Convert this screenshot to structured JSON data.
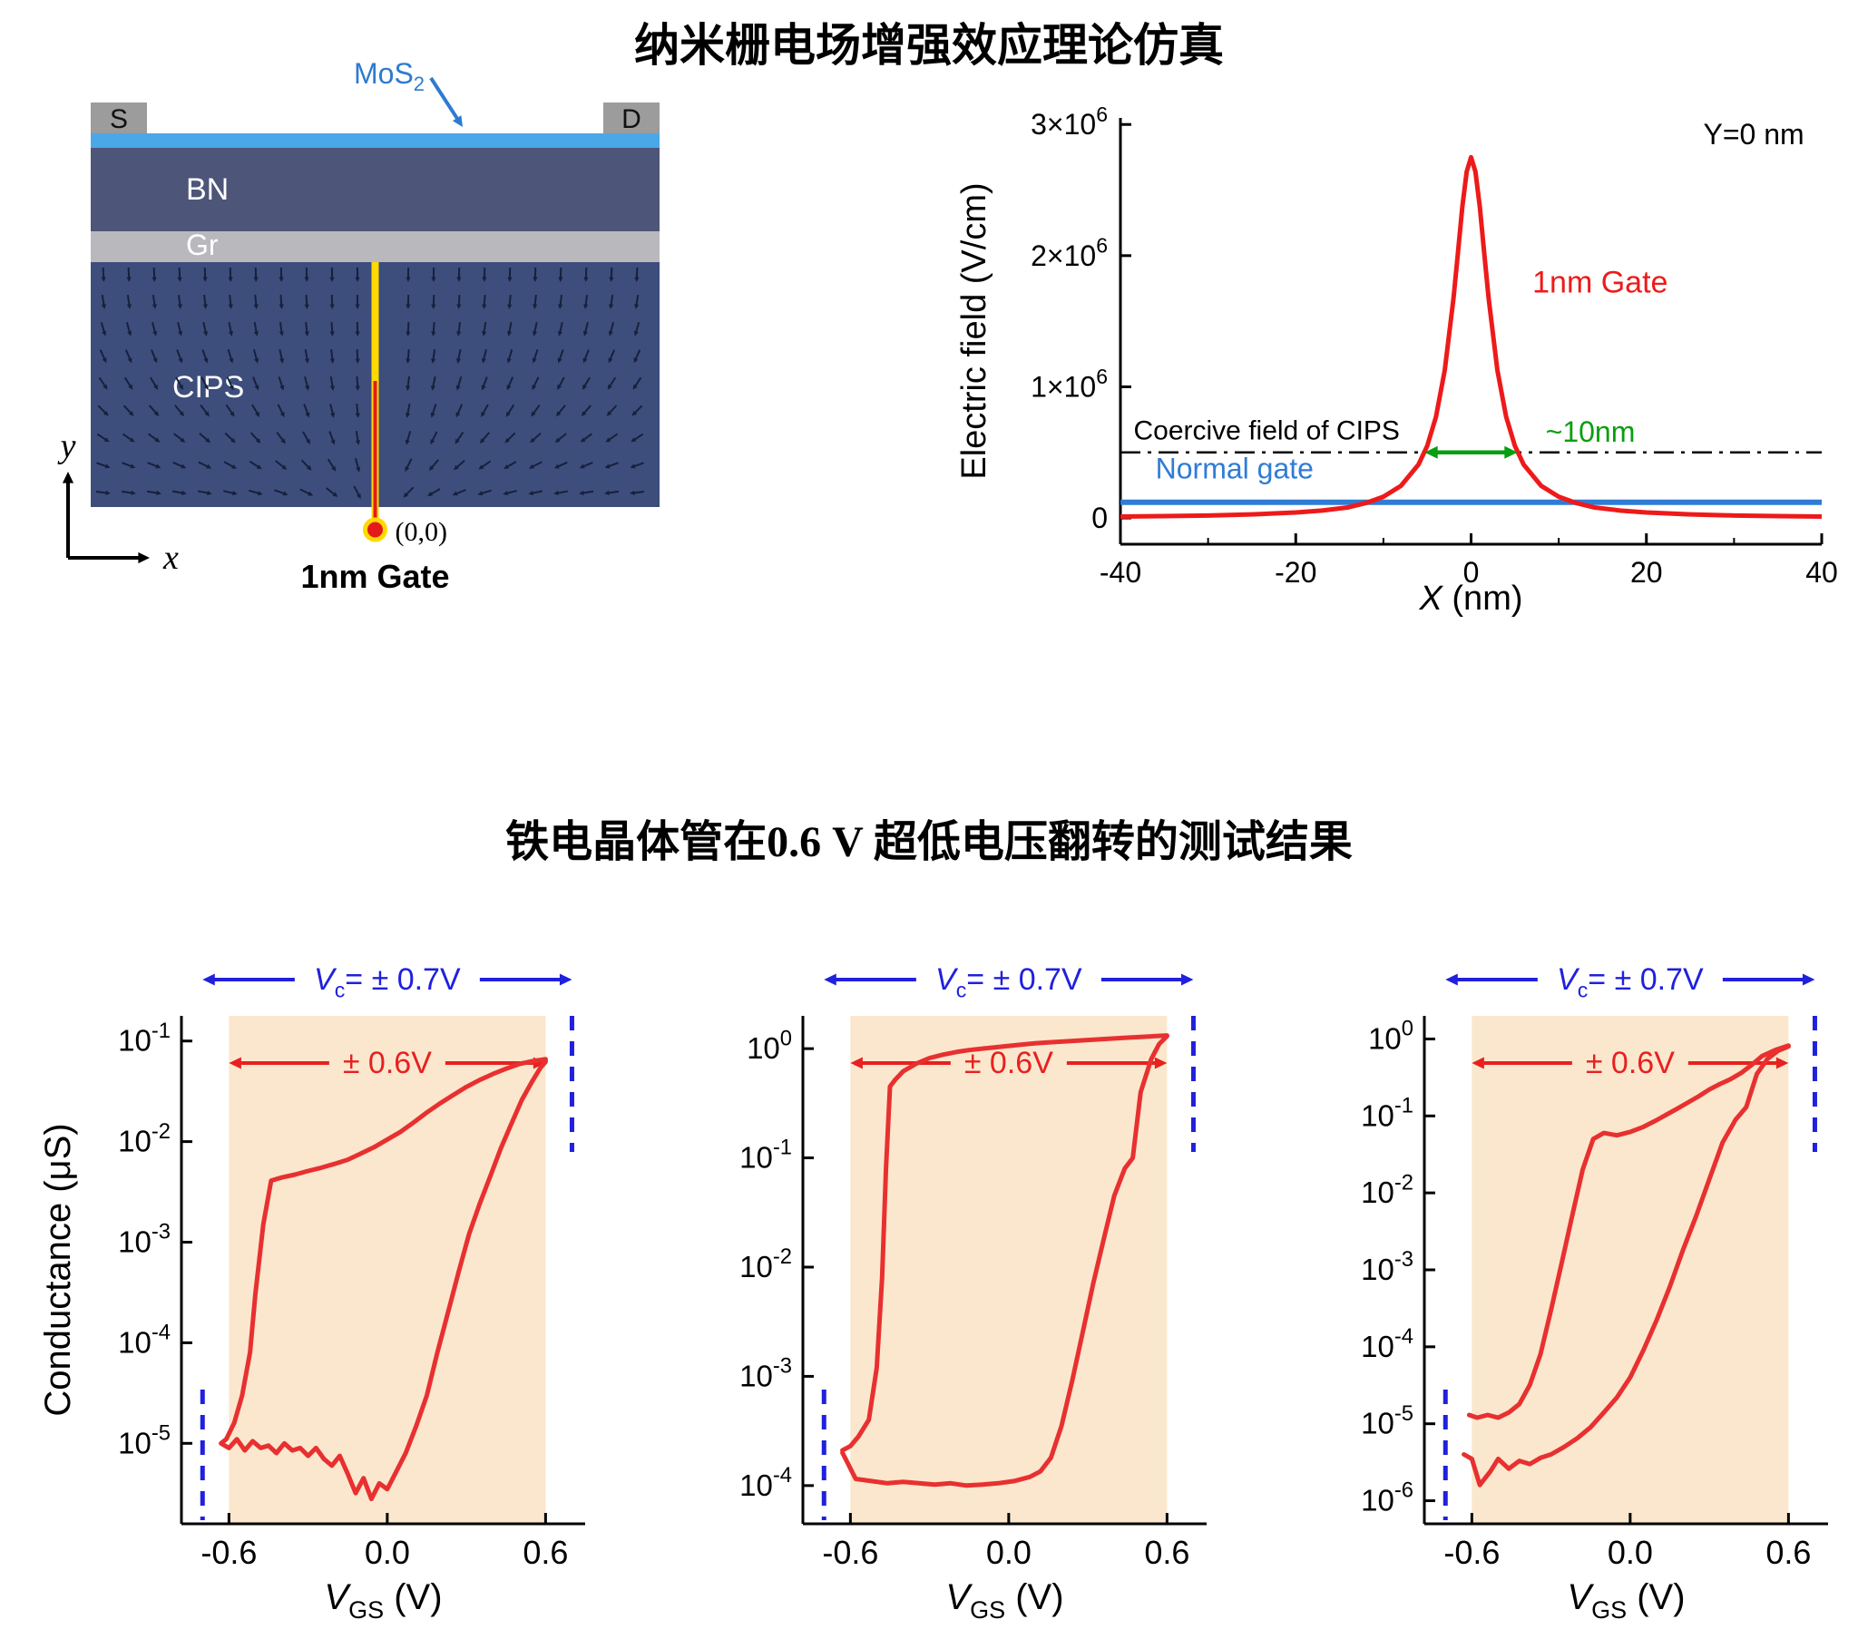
{
  "page": {
    "title_top": "纳米栅电场增强效应理论仿真",
    "title_bottom": "铁电晶体管在0.6 V 超低电压翻转的测试结果"
  },
  "schematic": {
    "source": "S",
    "drain": "D",
    "mos2_main": "MoS",
    "mos2_sub": "2",
    "bn": "BN",
    "gr": "Gr",
    "cips": "CIPS",
    "gate_label": "1nm Gate",
    "origin_label": "(0,0)",
    "axis_x": "x",
    "axis_y": "y",
    "colors": {
      "mos2": "#4aa8e8",
      "bn": "#4d5578",
      "gr": "#b9b9bd",
      "cips": "#3d4e7c",
      "contact": "#9c9c9c",
      "gate_yellow": "#ffd900",
      "gate_red": "#e41a1a",
      "field_arrow": "#17203c",
      "label_blue": "#2e7bd0"
    }
  },
  "style": {
    "curve_red": "#e83030",
    "band": "#fbe7cd",
    "blue": "#2020dd",
    "red": "#e82020",
    "green": "#089e10",
    "field_red": "#ee1a1a",
    "field_blue": "#2f7cd6"
  },
  "chart_data": [
    {
      "id": "field",
      "type": "line",
      "xlabel_italic": "X",
      "xlabel_rest": " (nm)",
      "ylabel": "Electric field (V/cm)",
      "xlim": [
        -40,
        40
      ],
      "ylim_e6": [
        -0.2,
        3.05
      ],
      "xticks": [
        -40,
        -20,
        0,
        20,
        40
      ],
      "xtick_labels": [
        "-40",
        "-20",
        "0",
        "20",
        "40"
      ],
      "xticks_minor": [
        -30,
        -10,
        10,
        30
      ],
      "yticks": [
        {
          "v": 0,
          "label": "0"
        },
        {
          "v": 1,
          "label": "1×10^6"
        },
        {
          "v": 2,
          "label": "2×10^6"
        },
        {
          "v": 3,
          "label": "3×10^6"
        }
      ],
      "coercive_e6": 0.5,
      "width_arrow": {
        "x1": -5.3,
        "x2": 5.3,
        "y_e6": 0.5,
        "label": "~10nm",
        "label_x": 8.5,
        "label_y_e6": 0.58
      },
      "annotations": {
        "y0_label": "Y=0 nm",
        "y0_x": 38,
        "y0_y_e6": 2.85,
        "gate_label": "1nm Gate",
        "gate_x": 7,
        "gate_y_e6": 1.72,
        "coercive_label": "Coercive field of CIPS",
        "coercive_x": -38.5,
        "coercive_y_e6": 0.6,
        "normal_label": "Normal gate",
        "normal_x": -36,
        "normal_y_e6": 0.3
      },
      "series": [
        {
          "name": "1nm Gate",
          "x": [
            -40,
            -35,
            -30,
            -25,
            -20,
            -17,
            -14,
            -12,
            -10,
            -8,
            -6,
            -5,
            -4,
            -3,
            -2,
            -1.5,
            -1,
            -0.5,
            0,
            0.5,
            1,
            1.5,
            2,
            3,
            4,
            5,
            6,
            8,
            10,
            12,
            14,
            17,
            20,
            25,
            30,
            35,
            40
          ],
          "y_e6": [
            0.011,
            0.014,
            0.019,
            0.027,
            0.042,
            0.057,
            0.081,
            0.114,
            0.162,
            0.245,
            0.407,
            0.55,
            0.772,
            1.127,
            1.677,
            2.02,
            2.37,
            2.64,
            2.75,
            2.64,
            2.37,
            2.02,
            1.677,
            1.127,
            0.772,
            0.55,
            0.407,
            0.245,
            0.162,
            0.114,
            0.081,
            0.057,
            0.042,
            0.027,
            0.019,
            0.014,
            0.011
          ]
        },
        {
          "name": "Normal gate",
          "x": [
            -40,
            40
          ],
          "y_e6": [
            0.12,
            0.12
          ]
        }
      ]
    },
    {
      "id": "transfer-a",
      "type": "line",
      "xlabel": {
        "main": "V",
        "sub": "GS",
        "rest": " (V)"
      },
      "ylabel": "Conductance (μS)",
      "xlim": [
        -0.78,
        0.75
      ],
      "xticks": {
        "values": [
          -0.6,
          0.0,
          0.6
        ],
        "labels": [
          "-0.6",
          "0.0",
          "0.6"
        ]
      },
      "ylog": [
        -5.8,
        -0.75
      ],
      "yticks": [
        {
          "exp": -1,
          "label": "10^-1"
        },
        {
          "exp": -2,
          "label": "10^-2"
        },
        {
          "exp": -3,
          "label": "10^-3"
        },
        {
          "exp": -4,
          "label": "10^-4"
        },
        {
          "exp": -5,
          "label": "10^-5"
        }
      ],
      "band": [
        -0.6,
        0.6
      ],
      "vc": {
        "main": "V",
        "sub": "c",
        "rest": "= ± 0.7V",
        "x1": -0.7,
        "x2": 0.7
      },
      "sweep": {
        "label": "± 0.6V",
        "x1": -0.6,
        "x2": 0.6
      },
      "curve": {
        "x": [
          -0.63,
          -0.6,
          -0.57,
          -0.54,
          -0.51,
          -0.48,
          -0.45,
          -0.42,
          -0.39,
          -0.36,
          -0.33,
          -0.3,
          -0.27,
          -0.24,
          -0.21,
          -0.18,
          -0.15,
          -0.12,
          -0.09,
          -0.06,
          -0.03,
          0.0,
          0.03,
          0.07,
          0.11,
          0.15,
          0.19,
          0.23,
          0.27,
          0.31,
          0.35,
          0.39,
          0.43,
          0.47,
          0.51,
          0.55,
          0.58,
          0.6,
          0.6,
          0.55,
          0.5,
          0.45,
          0.4,
          0.35,
          0.3,
          0.25,
          0.2,
          0.15,
          0.1,
          0.05,
          0.0,
          -0.05,
          -0.1,
          -0.15,
          -0.2,
          -0.25,
          -0.3,
          -0.35,
          -0.4,
          -0.44,
          -0.47,
          -0.5,
          -0.52,
          -0.55,
          -0.58,
          -0.61,
          -0.63
        ],
        "y": [
          1e-05,
          9e-06,
          1.1e-05,
          8.5e-06,
          1.05e-05,
          9e-06,
          9.5e-06,
          8e-06,
          1e-05,
          8.5e-06,
          9e-06,
          7.5e-06,
          9e-06,
          7e-06,
          6e-06,
          7.5e-06,
          5e-06,
          3.2e-06,
          4.5e-06,
          2.8e-06,
          4e-06,
          3.5e-06,
          5e-06,
          8e-06,
          1.5e-05,
          3e-05,
          8e-05,
          0.0002,
          0.0005,
          0.0012,
          0.0024,
          0.0045,
          0.0085,
          0.015,
          0.026,
          0.04,
          0.054,
          0.062,
          0.066,
          0.063,
          0.059,
          0.053,
          0.047,
          0.041,
          0.035,
          0.029,
          0.024,
          0.0195,
          0.0155,
          0.0125,
          0.0105,
          0.0088,
          0.0076,
          0.0066,
          0.006,
          0.0055,
          0.0051,
          0.0047,
          0.0044,
          0.0041,
          0.0015,
          0.0003,
          8e-05,
          3e-05,
          1.6e-05,
          1.1e-05,
          1e-05
        ]
      }
    },
    {
      "id": "transfer-b",
      "type": "line",
      "xlabel": {
        "main": "V",
        "sub": "GS",
        "rest": " (V)"
      },
      "ylabel": "",
      "xlim": [
        -0.78,
        0.75
      ],
      "xticks": {
        "values": [
          -0.6,
          0.0,
          0.6
        ],
        "labels": [
          "-0.6",
          "0.0",
          "0.6"
        ]
      },
      "ylog": [
        -4.35,
        0.3
      ],
      "yticks": [
        {
          "exp": 0,
          "label": "10^0"
        },
        {
          "exp": -1,
          "label": "10^-1"
        },
        {
          "exp": -2,
          "label": "10^-2"
        },
        {
          "exp": -3,
          "label": "10^-3"
        },
        {
          "exp": -4,
          "label": "10^-4"
        }
      ],
      "band": [
        -0.6,
        0.6
      ],
      "vc": {
        "main": "V",
        "sub": "c",
        "rest": "= ± 0.7V",
        "x1": -0.7,
        "x2": 0.7
      },
      "sweep": {
        "label": "± 0.6V",
        "x1": -0.6,
        "x2": 0.6
      },
      "curve": {
        "x": [
          -0.63,
          -0.58,
          -0.52,
          -0.46,
          -0.4,
          -0.34,
          -0.28,
          -0.22,
          -0.16,
          -0.1,
          -0.04,
          0.02,
          0.08,
          0.12,
          0.16,
          0.2,
          0.24,
          0.28,
          0.32,
          0.36,
          0.4,
          0.44,
          0.47,
          0.5,
          0.54,
          0.57,
          0.6,
          0.6,
          0.55,
          0.5,
          0.45,
          0.4,
          0.35,
          0.3,
          0.25,
          0.2,
          0.15,
          0.1,
          0.05,
          0.0,
          -0.05,
          -0.1,
          -0.15,
          -0.2,
          -0.25,
          -0.3,
          -0.35,
          -0.4,
          -0.43,
          -0.45,
          -0.465,
          -0.48,
          -0.5,
          -0.53,
          -0.57,
          -0.6,
          -0.63
        ],
        "y": [
          0.0002,
          0.000115,
          0.00011,
          0.000105,
          0.000108,
          0.000105,
          0.000102,
          0.000105,
          0.0001,
          0.000102,
          0.000105,
          0.00011,
          0.00012,
          0.000135,
          0.00018,
          0.00035,
          0.0009,
          0.0025,
          0.007,
          0.018,
          0.045,
          0.08,
          0.1,
          0.4,
          0.8,
          1.1,
          1.3,
          1.32,
          1.3,
          1.28,
          1.26,
          1.24,
          1.22,
          1.2,
          1.18,
          1.16,
          1.14,
          1.12,
          1.09,
          1.06,
          1.03,
          1.0,
          0.97,
          0.93,
          0.88,
          0.82,
          0.73,
          0.62,
          0.52,
          0.45,
          0.08,
          0.008,
          0.0012,
          0.0004,
          0.00028,
          0.00023,
          0.00021
        ]
      }
    },
    {
      "id": "transfer-c",
      "type": "line",
      "xlabel": {
        "main": "V",
        "sub": "GS",
        "rest": " (V)"
      },
      "ylabel": "",
      "xlim": [
        -0.78,
        0.75
      ],
      "xticks": {
        "values": [
          -0.6,
          0.0,
          0.6
        ],
        "labels": [
          "-0.6",
          "0.0",
          "0.6"
        ]
      },
      "ylog": [
        -6.3,
        0.3
      ],
      "yticks": [
        {
          "exp": 0,
          "label": "10^0"
        },
        {
          "exp": -1,
          "label": "10^-1"
        },
        {
          "exp": -2,
          "label": "10^-2"
        },
        {
          "exp": -3,
          "label": "10^-3"
        },
        {
          "exp": -4,
          "label": "10^-4"
        },
        {
          "exp": -5,
          "label": "10^-5"
        },
        {
          "exp": -6,
          "label": "10^-6"
        }
      ],
      "band": [
        -0.6,
        0.6
      ],
      "vc": {
        "main": "V",
        "sub": "c",
        "rest": "= ± 0.7V",
        "x1": -0.7,
        "x2": 0.7
      },
      "sweep": {
        "label": "± 0.6V",
        "x1": -0.6,
        "x2": 0.6
      },
      "curve": {
        "x": [
          -0.63,
          -0.6,
          -0.57,
          -0.53,
          -0.5,
          -0.46,
          -0.42,
          -0.38,
          -0.34,
          -0.3,
          -0.25,
          -0.2,
          -0.15,
          -0.1,
          -0.05,
          0.0,
          0.05,
          0.1,
          0.15,
          0.2,
          0.25,
          0.3,
          0.35,
          0.4,
          0.44,
          0.48,
          0.52,
          0.56,
          0.6,
          0.6,
          0.55,
          0.5,
          0.46,
          0.42,
          0.38,
          0.34,
          0.3,
          0.26,
          0.22,
          0.18,
          0.14,
          0.1,
          0.05,
          0.0,
          -0.05,
          -0.1,
          -0.14,
          -0.18,
          -0.22,
          -0.26,
          -0.3,
          -0.34,
          -0.38,
          -0.42,
          -0.46,
          -0.5,
          -0.54,
          -0.58,
          -0.61
        ],
        "y": [
          4e-06,
          3.5e-06,
          1.6e-06,
          2.4e-06,
          3.5e-06,
          2.6e-06,
          3.3e-06,
          3e-06,
          3.6e-06,
          4e-06,
          5e-06,
          6.5e-06,
          9e-06,
          1.4e-05,
          2.2e-05,
          4e-05,
          9e-05,
          0.00022,
          0.0006,
          0.0018,
          0.005,
          0.015,
          0.045,
          0.09,
          0.13,
          0.35,
          0.55,
          0.7,
          0.8,
          0.82,
          0.72,
          0.6,
          0.46,
          0.36,
          0.3,
          0.26,
          0.22,
          0.18,
          0.15,
          0.125,
          0.105,
          0.088,
          0.072,
          0.062,
          0.056,
          0.06,
          0.05,
          0.02,
          0.005,
          0.0012,
          0.0003,
          8e-05,
          3.2e-05,
          1.8e-05,
          1.4e-05,
          1.2e-05,
          1.3e-05,
          1.2e-05,
          1.3e-05
        ]
      }
    }
  ]
}
